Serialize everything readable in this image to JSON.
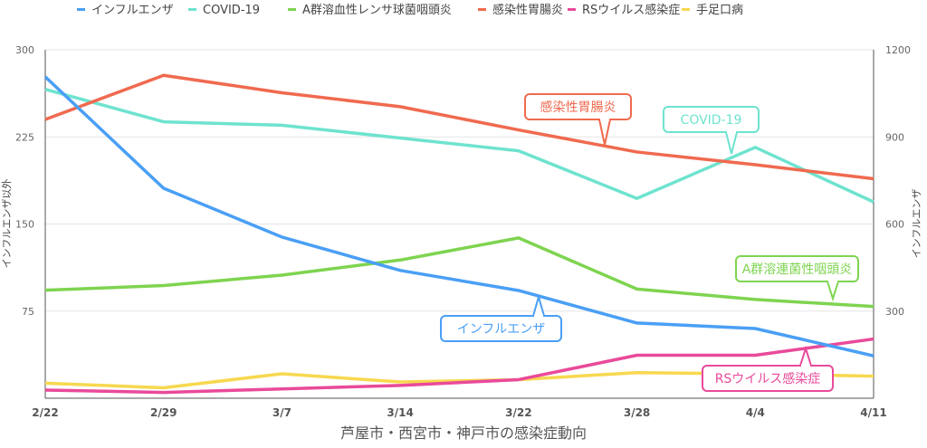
{
  "chart_data": {
    "type": "line",
    "title": "芦屋市・西宮市・神戸市の感染症動向",
    "xlabel": "芦屋市・西宮市・神戸市の感染症動向",
    "ylabel_left": "インフルエンザ以外",
    "ylabel_right": "インフルエンザ",
    "categories": [
      "2/22",
      "2/29",
      "3/7",
      "3/14",
      "3/22",
      "3/28",
      "4/4",
      "4/11"
    ],
    "ylim_left": [
      0,
      300
    ],
    "yticks_left": [
      75,
      150,
      225,
      300
    ],
    "ylim_right": [
      0,
      1200
    ],
    "yticks_right": [
      300,
      600,
      900,
      1200
    ],
    "grid": true,
    "legend_position": "top",
    "series": [
      {
        "name": "インフルエンザ",
        "axis": "right",
        "color": "#4a9ff5",
        "values": [
          1107,
          723,
          555,
          440,
          371,
          259,
          240,
          146
        ],
        "annotation": "インフルエンザ"
      },
      {
        "name": "COVID-19",
        "axis": "left",
        "color": "#6ee3cf",
        "values": [
          266,
          238,
          235,
          224,
          213,
          172,
          216,
          169
        ],
        "annotation": "COVID-19"
      },
      {
        "name": "A群溶血性レンサ球菌咽頭炎",
        "axis": "left",
        "color": "#7ed450",
        "values": [
          93,
          97,
          106,
          119,
          138,
          94,
          85,
          79
        ],
        "annotation": "A群溶連菌性咽頭炎"
      },
      {
        "name": "感染性胃腸炎",
        "axis": "left",
        "color": "#f06a4f",
        "values": [
          240,
          278,
          263,
          251,
          231,
          212,
          201,
          189
        ],
        "annotation": "感染性胃腸炎"
      },
      {
        "name": "RSウイルス感染症",
        "axis": "left",
        "color": "#e94a9a",
        "values": [
          7,
          5,
          8,
          11,
          16,
          37,
          37,
          51
        ],
        "annotation": "RSウイルス感染症"
      },
      {
        "name": "手足口病",
        "axis": "left",
        "color": "#f7d84f",
        "values": [
          13,
          9,
          21,
          14,
          16,
          22,
          21,
          19
        ],
        "annotation": ""
      }
    ]
  }
}
